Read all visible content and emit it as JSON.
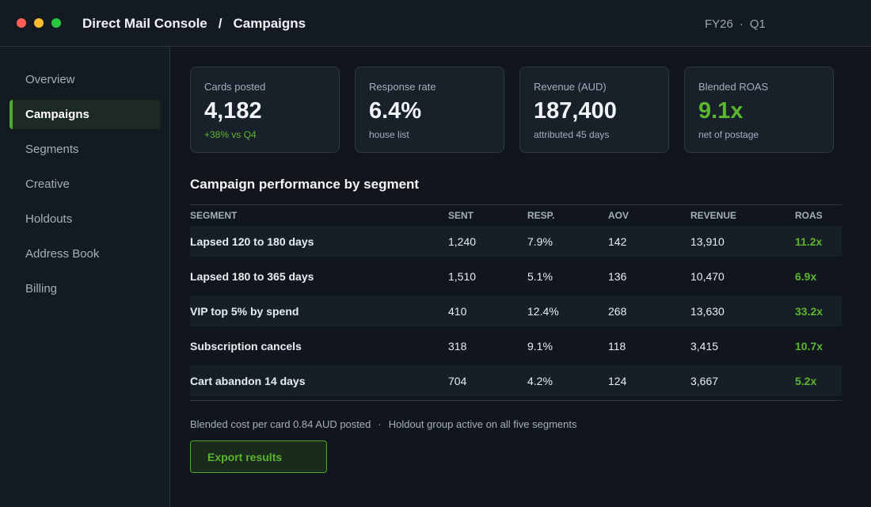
{
  "header": {
    "app_name": "Direct Mail Console",
    "separator": "/",
    "section": "Campaigns",
    "period_year": "FY26",
    "period_sep": "·",
    "period_quarter": "Q1"
  },
  "window_controls": {
    "close_color": "#ff5f57",
    "minimize_color": "#febc2e",
    "maximize_color": "#28c840"
  },
  "sidebar": {
    "items": [
      {
        "label": "Overview",
        "active": false
      },
      {
        "label": "Campaigns",
        "active": true
      },
      {
        "label": "Segments",
        "active": false
      },
      {
        "label": "Creative",
        "active": false
      },
      {
        "label": "Holdouts",
        "active": false
      },
      {
        "label": "Address Book",
        "active": false
      },
      {
        "label": "Billing",
        "active": false
      }
    ]
  },
  "kpis": [
    {
      "label": "Cards posted",
      "value": "4,182",
      "sub": "+38% vs Q4"
    },
    {
      "label": "Response rate",
      "value": "6.4%",
      "sub": "house list"
    },
    {
      "label": "Revenue (AUD)",
      "value": "187,400",
      "sub": "attributed 45 days"
    },
    {
      "label": "Blended ROAS",
      "value": "9.1x",
      "sub": "net of postage"
    }
  ],
  "table": {
    "title": "Campaign performance by segment",
    "columns": [
      "SEGMENT",
      "SENT",
      "RESP.",
      "AOV",
      "REVENUE",
      "ROAS"
    ],
    "rows": [
      [
        "Lapsed 120 to 180 days",
        "1,240",
        "7.9%",
        "142",
        "13,910",
        "11.2x"
      ],
      [
        "Lapsed 180 to 365 days",
        "1,510",
        "5.1%",
        "136",
        "10,470",
        "6.9x"
      ],
      [
        "VIP top 5% by spend",
        "410",
        "12.4%",
        "268",
        "13,630",
        "33.2x"
      ],
      [
        "Subscription cancels",
        "318",
        "9.1%",
        "118",
        "3,415",
        "10.7x"
      ],
      [
        "Cart abandon 14 days",
        "704",
        "4.2%",
        "124",
        "3,667",
        "5.2x"
      ]
    ]
  },
  "footer": {
    "note_cost": "Blended cost per card 0.84 AUD posted",
    "note_sep": "·",
    "note_holdout": "Holdout group active on all five segments",
    "export_label": "Export results"
  },
  "colors": {
    "accent": "#5cb52f",
    "background": "#10161c",
    "panel": "#18212a"
  }
}
